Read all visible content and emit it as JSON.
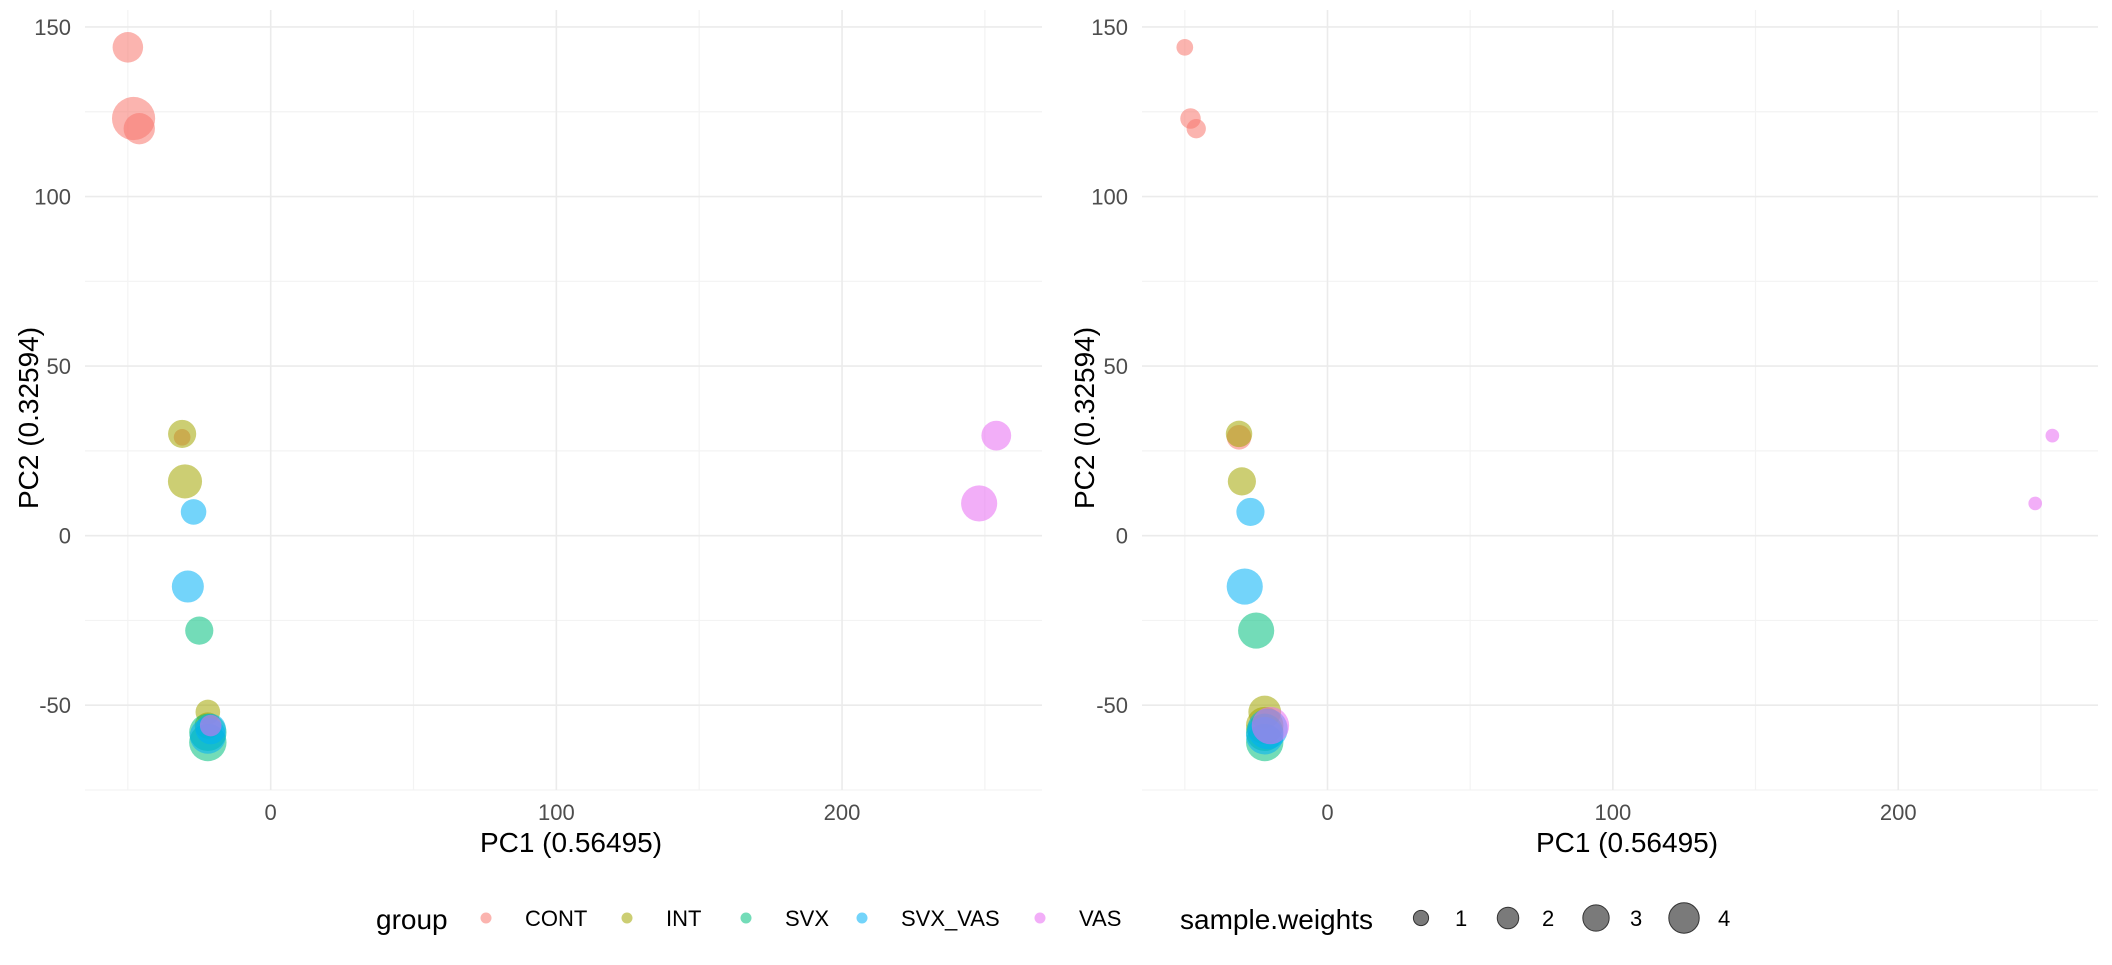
{
  "colors": {
    "CONT": "#F8766D",
    "INT": "#A3A500",
    "SVX": "#00BF7D",
    "SVX_VAS": "#00B0F6",
    "VAS": "#E76BF3",
    "size_legend": "#4d4d4d",
    "grid": "#ebebeb"
  },
  "legend": {
    "group_title": "group",
    "groups": [
      "CONT",
      "INT",
      "SVX",
      "SVX_VAS",
      "VAS"
    ],
    "size_title": "sample.weights",
    "size_breaks": [
      "1",
      "2",
      "3",
      "4"
    ],
    "position": "bottom"
  },
  "chart_data": [
    {
      "type": "scatter",
      "panel": "left",
      "xlabel": "PC1 (0.56495)",
      "ylabel": "PC2 (0.32594)",
      "xlim": [
        -65,
        270
      ],
      "ylim": [
        -75,
        155
      ],
      "x_ticks": [
        0,
        100,
        200
      ],
      "y_ticks": [
        -50,
        0,
        50,
        100,
        150
      ],
      "grid": true,
      "points": [
        {
          "group": "CONT",
          "x": -50,
          "y": 144,
          "w": 2.0
        },
        {
          "group": "CONT",
          "x": -48,
          "y": 123,
          "w": 4.0
        },
        {
          "group": "CONT",
          "x": -46,
          "y": 120,
          "w": 2.1
        },
        {
          "group": "CONT",
          "x": -31,
          "y": 29,
          "w": 0.6
        },
        {
          "group": "INT",
          "x": -31,
          "y": 30,
          "w": 1.7
        },
        {
          "group": "INT",
          "x": -30,
          "y": 16,
          "w": 2.5
        },
        {
          "group": "INT",
          "x": -22,
          "y": -52,
          "w": 1.3
        },
        {
          "group": "INT",
          "x": -22,
          "y": -56,
          "w": 1.5
        },
        {
          "group": "SVX_VAS",
          "x": -27,
          "y": 7,
          "w": 1.4
        },
        {
          "group": "SVX_VAS",
          "x": -29,
          "y": -15,
          "w": 2.2
        },
        {
          "group": "SVX",
          "x": -25,
          "y": -28,
          "w": 1.7
        },
        {
          "group": "SVX",
          "x": -22,
          "y": -58,
          "w": 3.0
        },
        {
          "group": "SVX",
          "x": -22,
          "y": -61,
          "w": 3.0
        },
        {
          "group": "SVX_VAS",
          "x": -22,
          "y": -59,
          "w": 2.8
        },
        {
          "group": "SVX_VAS",
          "x": -21,
          "y": -57,
          "w": 2.0
        },
        {
          "group": "VAS",
          "x": -21,
          "y": -56,
          "w": 1.0
        },
        {
          "group": "VAS",
          "x": 254,
          "y": 29.5,
          "w": 1.9
        },
        {
          "group": "VAS",
          "x": 248,
          "y": 9.5,
          "w": 2.8
        }
      ]
    },
    {
      "type": "scatter",
      "panel": "right",
      "xlabel": "PC1 (0.56495)",
      "ylabel": "PC2 (0.32594)",
      "xlim": [
        -65,
        270
      ],
      "ylim": [
        -75,
        155
      ],
      "x_ticks": [
        0,
        100,
        200
      ],
      "y_ticks": [
        -50,
        0,
        50,
        100,
        150
      ],
      "grid": true,
      "points": [
        {
          "group": "CONT",
          "x": -50,
          "y": 144,
          "w": 0.6
        },
        {
          "group": "CONT",
          "x": -48,
          "y": 123,
          "w": 0.9
        },
        {
          "group": "CONT",
          "x": -46,
          "y": 120,
          "w": 0.8
        },
        {
          "group": "CONT",
          "x": -31,
          "y": 29,
          "w": 1.3
        },
        {
          "group": "INT",
          "x": -31,
          "y": 30,
          "w": 1.5
        },
        {
          "group": "INT",
          "x": -30,
          "y": 16,
          "w": 1.7
        },
        {
          "group": "INT",
          "x": -22,
          "y": -52,
          "w": 2.3
        },
        {
          "group": "INT",
          "x": -22,
          "y": -56,
          "w": 3.0
        },
        {
          "group": "SVX_VAS",
          "x": -27,
          "y": 7,
          "w": 1.7
        },
        {
          "group": "SVX_VAS",
          "x": -29,
          "y": -15,
          "w": 2.8
        },
        {
          "group": "SVX",
          "x": -25,
          "y": -28,
          "w": 2.8
        },
        {
          "group": "SVX",
          "x": -22,
          "y": -58,
          "w": 3.0
        },
        {
          "group": "SVX",
          "x": -22,
          "y": -61,
          "w": 3.0
        },
        {
          "group": "SVX_VAS",
          "x": -22,
          "y": -59,
          "w": 3.0
        },
        {
          "group": "SVX_VAS",
          "x": -21,
          "y": -57,
          "w": 3.5
        },
        {
          "group": "VAS",
          "x": -20,
          "y": -56,
          "w": 3.0
        },
        {
          "group": "VAS",
          "x": 254,
          "y": 29.5,
          "w": 0.4
        },
        {
          "group": "VAS",
          "x": 248,
          "y": 9.5,
          "w": 0.4
        }
      ]
    }
  ]
}
